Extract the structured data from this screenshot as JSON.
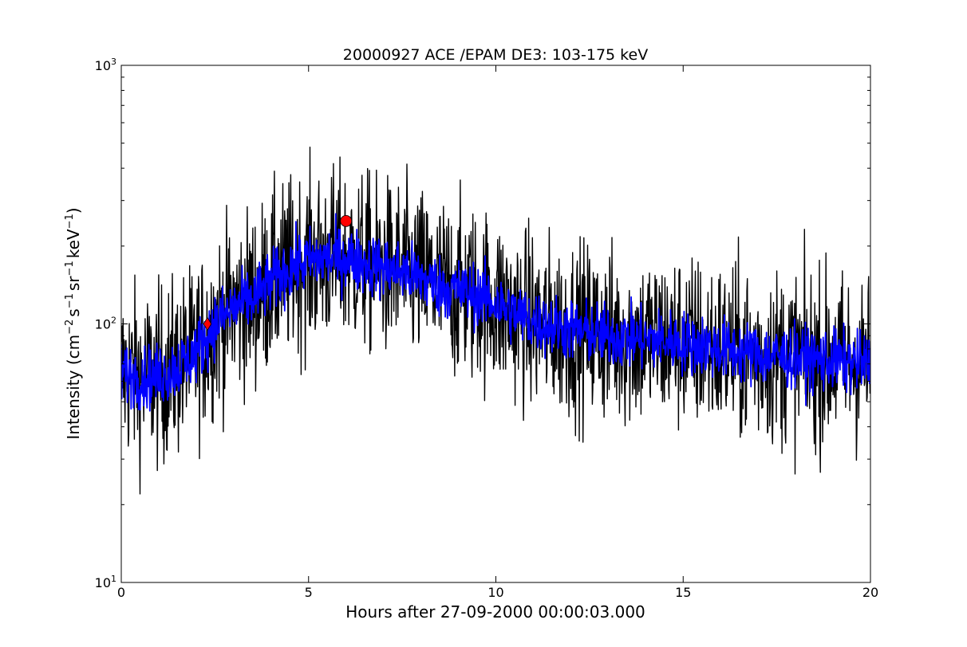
{
  "chart_data": {
    "type": "line",
    "title": "20000927 ACE /EPAM DE3: 103-175 keV",
    "xlabel": "Hours after 27-09-2000 00:00:03.000",
    "ylabel": {
      "main": "Intensity (cm",
      "sup1": "−2",
      "mid1": "s",
      "sup2": "−1",
      "mid2": "sr",
      "sup3": "−1",
      "mid3": "keV",
      "sup4": "−1",
      "end": ")"
    },
    "xlim": [
      0,
      20
    ],
    "ylim": [
      10,
      1000
    ],
    "yscale": "log",
    "grid": false,
    "x_ticks": [
      {
        "value": 0,
        "label": "0"
      },
      {
        "value": 5,
        "label": "5"
      },
      {
        "value": 10,
        "label": "10"
      },
      {
        "value": 15,
        "label": "15"
      },
      {
        "value": 20,
        "label": "20"
      }
    ],
    "y_ticks": [
      {
        "value": 10,
        "base": "10",
        "exp": "1"
      },
      {
        "value": 100,
        "base": "10",
        "exp": "2"
      },
      {
        "value": 1000,
        "base": "10",
        "exp": "3"
      }
    ],
    "trend": {
      "x": [
        0,
        0.5,
        1.0,
        1.5,
        2.0,
        2.3,
        2.5,
        3.0,
        3.5,
        4.0,
        4.5,
        5.0,
        5.5,
        6.0,
        6.5,
        7.0,
        7.5,
        8.0,
        8.5,
        9.0,
        9.5,
        10.0,
        10.5,
        11.0,
        11.5,
        12.0,
        13.0,
        14.0,
        15.0,
        16.0,
        17.0,
        18.0,
        19.0,
        20.0
      ],
      "y": [
        65,
        62,
        63,
        68,
        78,
        90,
        100,
        115,
        125,
        145,
        165,
        175,
        180,
        180,
        172,
        165,
        160,
        150,
        140,
        135,
        130,
        120,
        110,
        102,
        98,
        95,
        90,
        87,
        85,
        80,
        76,
        74,
        72,
        70
      ]
    },
    "series": [
      {
        "color": "#000000",
        "noise_spread": 0.34
      },
      {
        "color": "#0000ff",
        "noise_spread": 0.12
      }
    ],
    "markers": [
      {
        "shape": "diamond",
        "x": 2.3,
        "y": 100,
        "color": "#ff0000"
      },
      {
        "shape": "circle",
        "x": 6.0,
        "y": 250,
        "color": "#ff0000"
      }
    ]
  }
}
